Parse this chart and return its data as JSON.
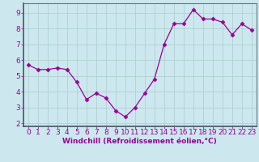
{
  "x": [
    0,
    1,
    2,
    3,
    4,
    5,
    6,
    7,
    8,
    9,
    10,
    11,
    12,
    13,
    14,
    15,
    16,
    17,
    18,
    19,
    20,
    21,
    22,
    23
  ],
  "y": [
    5.7,
    5.4,
    5.4,
    5.5,
    5.4,
    4.6,
    3.5,
    3.9,
    3.6,
    2.8,
    2.4,
    3.0,
    3.9,
    4.8,
    7.0,
    8.3,
    8.3,
    9.2,
    8.6,
    8.6,
    8.4,
    7.6,
    8.3,
    7.9
  ],
  "line_color": "#990099",
  "marker": "D",
  "marker_size": 2.5,
  "bg_color": "#cce8ee",
  "grid_color": "#aacccc",
  "xlabel": "Windchill (Refroidissement éolien,°C)",
  "xlim": [
    -0.5,
    23.5
  ],
  "ylim": [
    1.8,
    9.6
  ],
  "yticks": [
    2,
    3,
    4,
    5,
    6,
    7,
    8,
    9
  ],
  "xticks": [
    0,
    1,
    2,
    3,
    4,
    5,
    6,
    7,
    8,
    9,
    10,
    11,
    12,
    13,
    14,
    15,
    16,
    17,
    18,
    19,
    20,
    21,
    22,
    23
  ],
  "tick_color": "#990099",
  "label_color": "#990099",
  "font_size_xlabel": 6.5,
  "font_size_ticks": 6.5
}
